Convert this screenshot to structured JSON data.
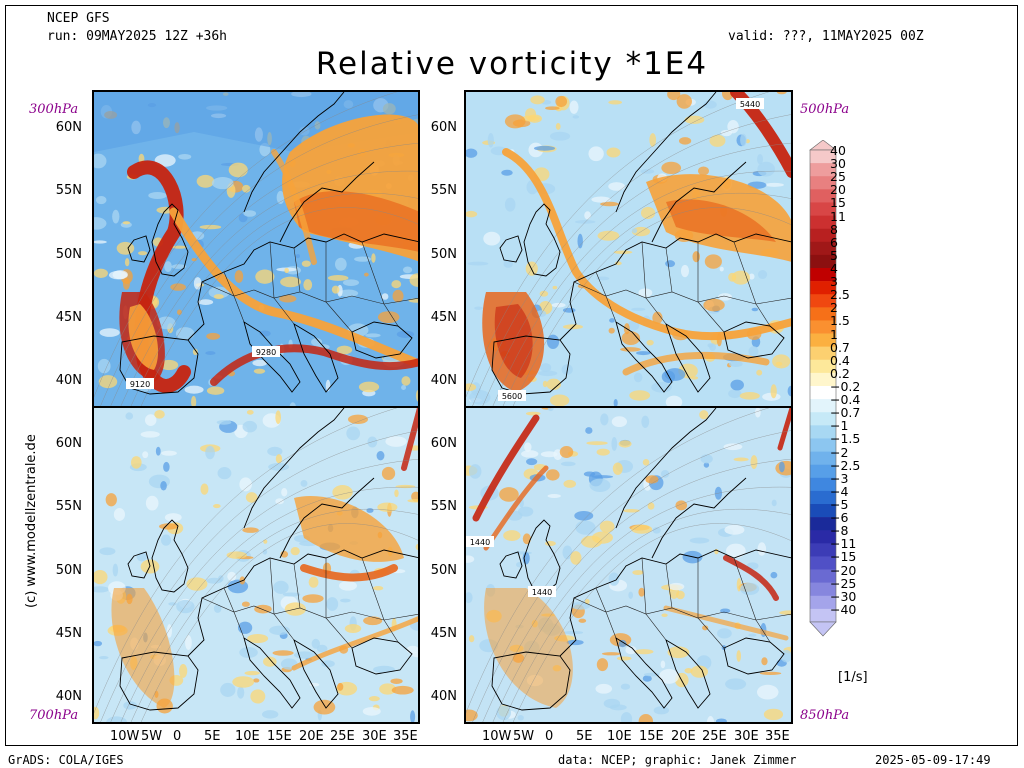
{
  "header": {
    "model": "NCEP GFS",
    "run": "run: 09MAY2025 12Z +36h",
    "valid": "valid: ???, 11MAY2025 00Z",
    "title": "Relative vorticity *1E4"
  },
  "panels": [
    {
      "level": "300hPa",
      "contour_labels": [
        "9120",
        "9280"
      ]
    },
    {
      "level": "500hPa",
      "contour_labels": [
        "5440",
        "5600"
      ]
    },
    {
      "level": "700hPa",
      "contour_labels": []
    },
    {
      "level": "850hPa",
      "contour_labels": [
        "1440",
        "1440"
      ]
    }
  ],
  "lat_labels": [
    "60N",
    "55N",
    "50N",
    "45N",
    "40N"
  ],
  "lon_labels": [
    "10W",
    "5W",
    "0",
    "5E",
    "10E",
    "15E",
    "20E",
    "25E",
    "30E",
    "35E"
  ],
  "colorbar": {
    "levels": [
      "40",
      "30",
      "25",
      "20",
      "15",
      "11",
      "8",
      "6",
      "5",
      "4",
      "3",
      "2.5",
      "2",
      "1.5",
      "1",
      "0.7",
      "0.4",
      "0.2",
      "−0.2",
      "−0.4",
      "−0.7",
      "−1",
      "−1.5",
      "−2",
      "−2.5",
      "−3",
      "−4",
      "−5",
      "−6",
      "−8",
      "−11",
      "−15",
      "−20",
      "−25",
      "−30",
      "−40"
    ],
    "colors": [
      "#f5c9c9",
      "#ee9d9d",
      "#e88080",
      "#e06060",
      "#d84646",
      "#cc3030",
      "#b82020",
      "#a01818",
      "#8c1010",
      "#c00000",
      "#e02000",
      "#f04810",
      "#f67018",
      "#fa9030",
      "#fbb040",
      "#fcd070",
      "#fde89a",
      "#fff6cc",
      "#ffffff",
      "#e2f4fb",
      "#c6e9f7",
      "#a8d8f3",
      "#8cc6f0",
      "#70b2ec",
      "#579fe8",
      "#3f87e0",
      "#2a6cd0",
      "#1a4cb8",
      "#1a2a9a",
      "#2a2aa6",
      "#3c3cb6",
      "#5050c6",
      "#6a6ad2",
      "#8686de",
      "#a4a4ea",
      "#c4c4f4"
    ],
    "unit": "[1/s]"
  },
  "side_credit": "(c) www.modellzentrale.de",
  "footer": {
    "left": "GrADS: COLA/IGES",
    "center": "data: NCEP; graphic: Janek Zimmer",
    "right": "2025-05-09-17:49"
  }
}
